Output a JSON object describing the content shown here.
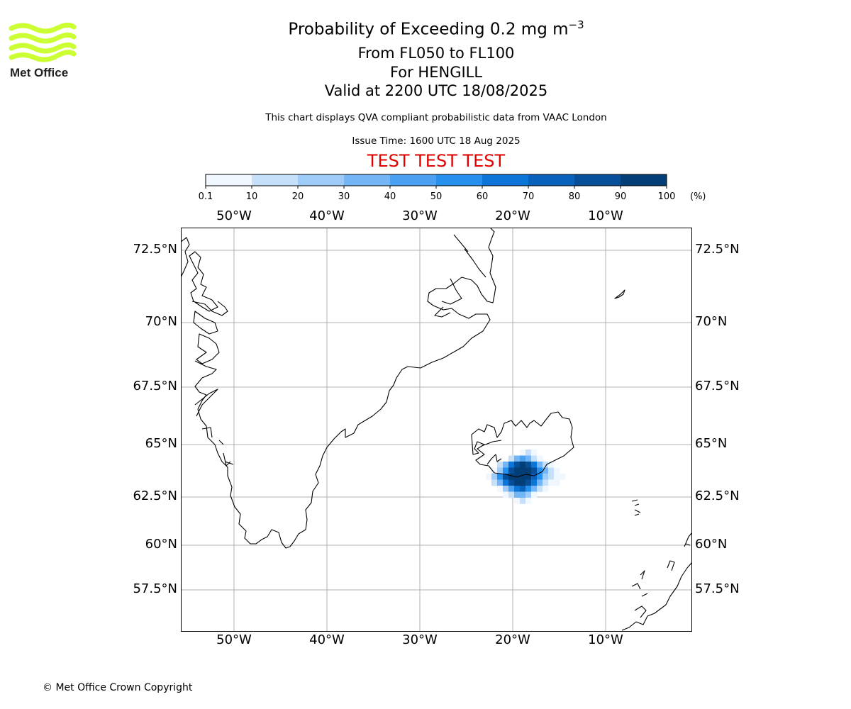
{
  "logo": {
    "text": "Met Office",
    "color": "#ccff33"
  },
  "header": {
    "title_main": "Probability of Exceeding 0.2 mg m",
    "title_sup": "−3",
    "levels": "From FL050 to FL100",
    "location": "For HENGILL",
    "valid": "Valid at 2200 UTC 18/08/2025",
    "subtitle": "This chart displays QVA compliant probabilistic data from VAAC London",
    "issue_time": "Issue Time: 1600 UTC 18 Aug 2025",
    "test_banner": "TEST TEST TEST",
    "test_color": "#e00000"
  },
  "colorbar": {
    "ticks": [
      "0.1",
      "10",
      "20",
      "30",
      "40",
      "50",
      "60",
      "70",
      "80",
      "90",
      "100"
    ],
    "unit": "(%)",
    "colors": [
      "#f0f7ff",
      "#c6e0fa",
      "#9ecbf7",
      "#74b5f5",
      "#4aa1f2",
      "#2590ee",
      "#0c75d8",
      "#0862bb",
      "#064f98",
      "#043e76",
      "#032a54"
    ]
  },
  "map": {
    "lon_labels": [
      "50°W",
      "40°W",
      "30°W",
      "20°W",
      "10°W"
    ],
    "lat_labels": [
      "72.5°N",
      "70°N",
      "67.5°N",
      "65°N",
      "62.5°N",
      "60°N",
      "57.5°N"
    ],
    "grid_color": "#b0b0b0",
    "source": "HENGILL"
  },
  "footer": {
    "copyright": "© Met Office Crown Copyright"
  }
}
